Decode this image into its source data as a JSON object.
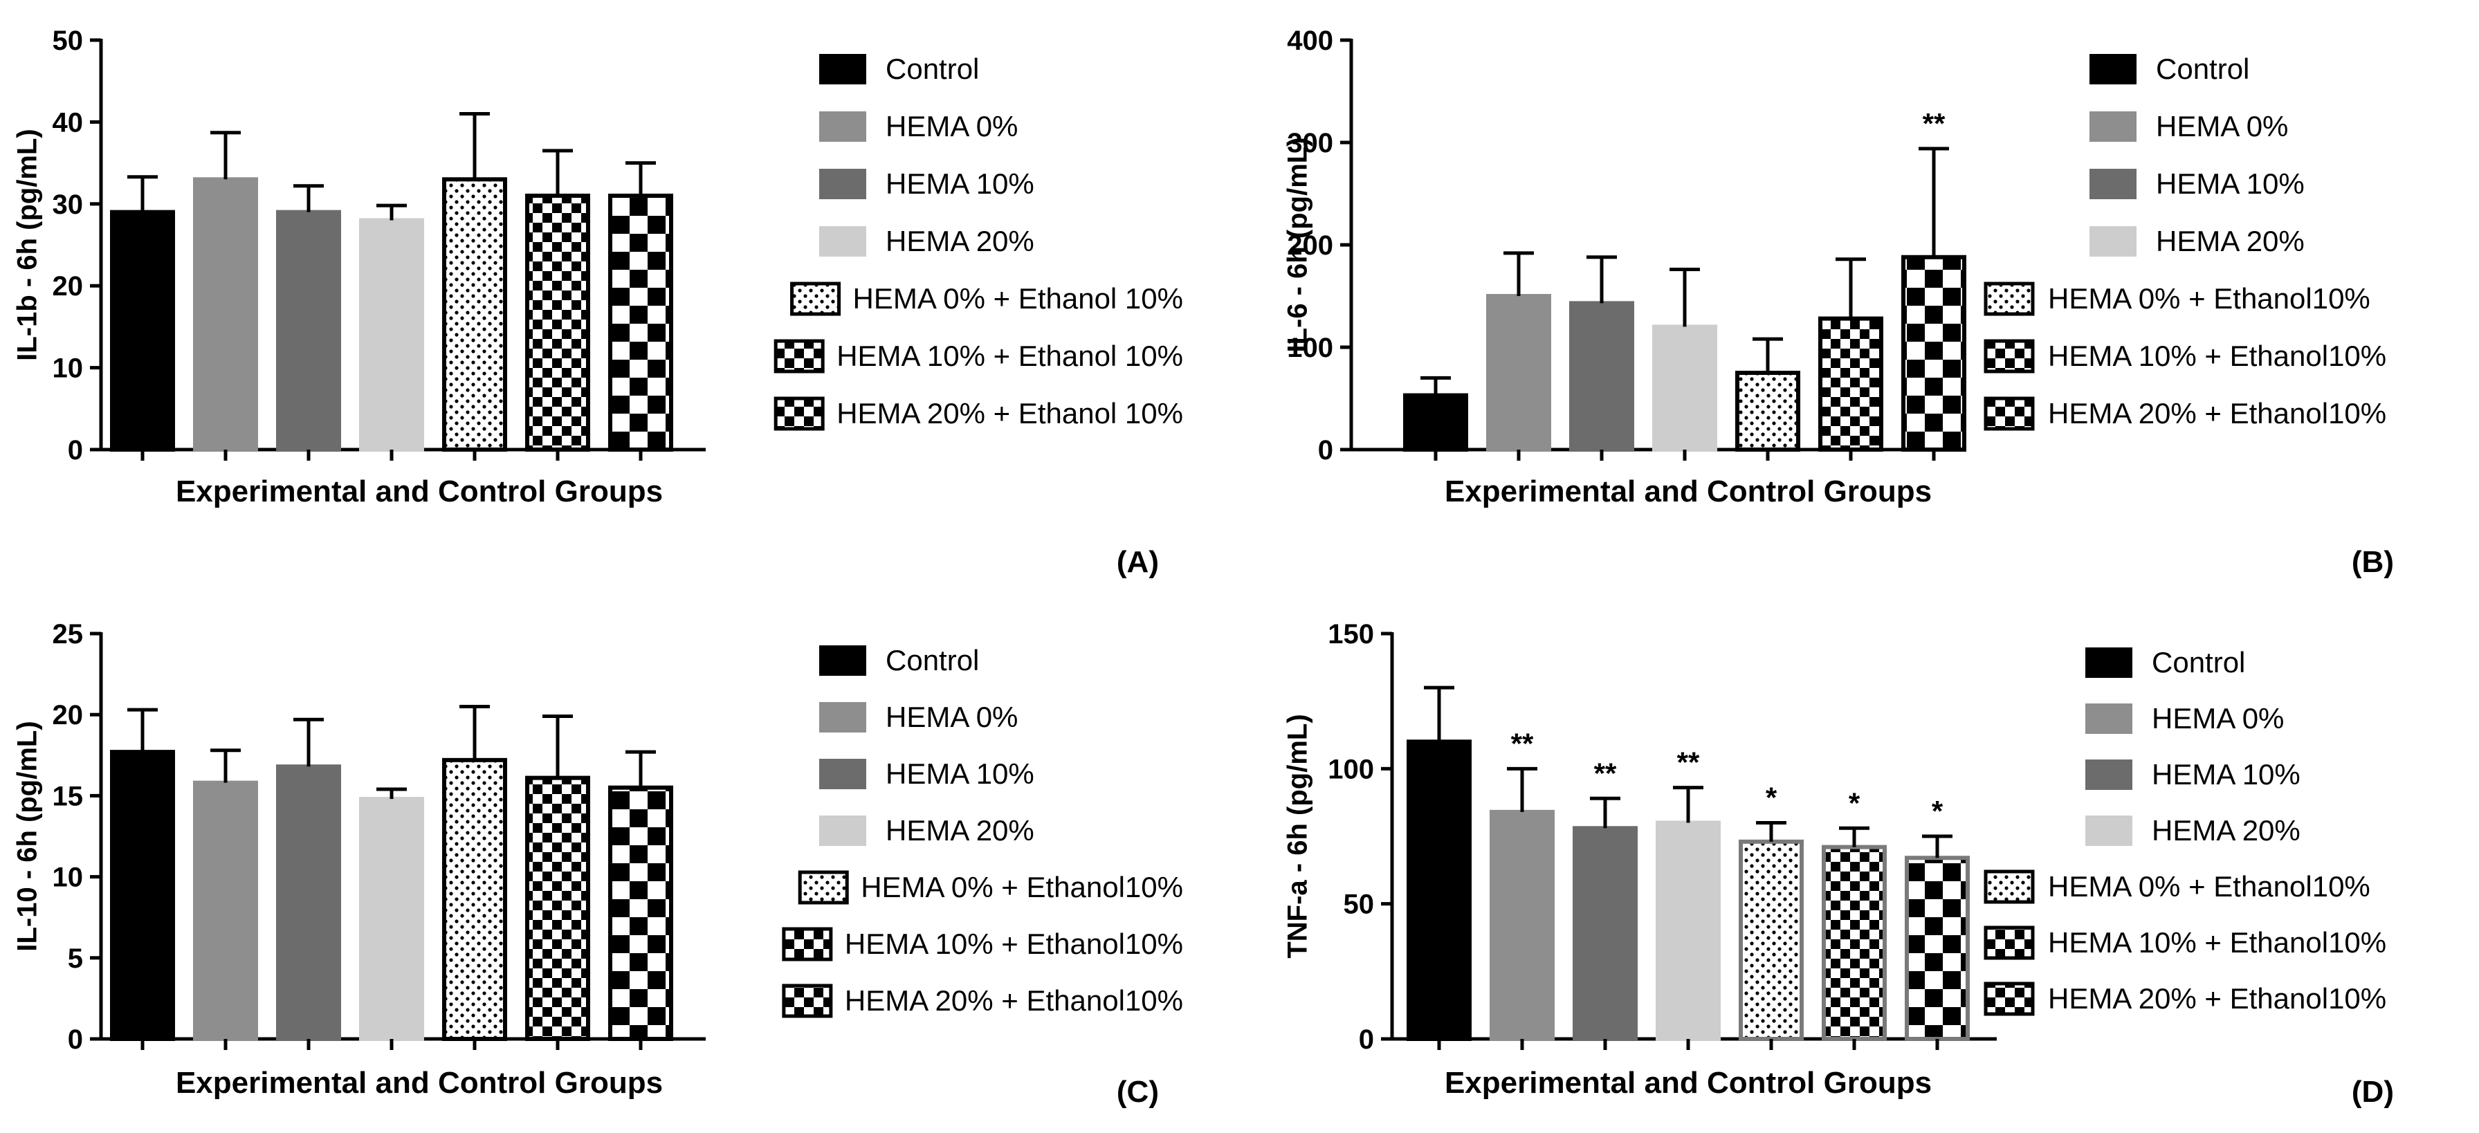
{
  "colors": {
    "control": "#000000",
    "hema0": "#8e8e8e",
    "hema10": "#6c6c6c",
    "hema20": "#cdcdcd",
    "outline_d": "#7a7a7a"
  },
  "chart_data": [
    {
      "type": "bar",
      "panel_label": "(A)",
      "ylabel": "IL-1b - 6h (pg/mL)",
      "xlabel": "Experimental and Control Groups",
      "ylim": [
        0,
        50
      ],
      "yticks": [
        0,
        10,
        20,
        30,
        40,
        50
      ],
      "categories": [
        "Control",
        "HEMA 0%",
        "HEMA 10%",
        "HEMA 20%",
        "HEMA 0% + Ethanol 10%",
        "HEMA 10% + Ethanol 10%",
        "HEMA 20% + Ethanol 10%"
      ],
      "values": [
        29,
        33,
        29,
        28,
        33,
        31,
        31
      ],
      "errors": [
        4.3,
        5.7,
        3.2,
        1.8,
        8,
        5.5,
        4
      ],
      "significance": [
        "",
        "",
        "",
        "",
        "",
        "",
        ""
      ],
      "legend": [
        "Control",
        "HEMA 0%",
        "HEMA 10%",
        "HEMA 20%",
        "HEMA 0% + Ethanol 10%",
        "HEMA 10% + Ethanol 10%",
        "HEMA 20% + Ethanol 10%"
      ],
      "legend_position": "right"
    },
    {
      "type": "bar",
      "panel_label": "(B)",
      "ylabel": "IL-6 - 6h (pg/mL)",
      "xlabel": "Experimental and Control Groups",
      "ylim": [
        0,
        400
      ],
      "yticks": [
        0,
        100,
        200,
        300,
        400
      ],
      "categories": [
        "Control",
        "HEMA 0%",
        "HEMA 10%",
        "HEMA 20%",
        "HEMA 0% + Ethanol10%",
        "HEMA 10% + Ethanol10%",
        "HEMA 20% + Ethanol10%"
      ],
      "values": [
        53,
        150,
        143,
        120,
        75,
        128,
        188
      ],
      "errors": [
        17,
        42,
        45,
        56,
        33,
        58,
        106
      ],
      "significance": [
        "",
        "",
        "",
        "",
        "",
        "",
        "**"
      ],
      "legend": [
        "Control",
        "HEMA 0%",
        "HEMA 10%",
        "HEMA 20%",
        "HEMA 0% + Ethanol10%",
        "HEMA 10% + Ethanol10%",
        "HEMA 20% + Ethanol10%"
      ],
      "legend_position": "right"
    },
    {
      "type": "bar",
      "panel_label": "(C)",
      "ylabel": "IL-10 - 6h (pg/mL)",
      "xlabel": "Experimental and Control Groups",
      "ylim": [
        0,
        25
      ],
      "yticks": [
        0,
        5,
        10,
        15,
        20,
        25
      ],
      "categories": [
        "Control",
        "HEMA 0%",
        "HEMA 10%",
        "HEMA 20%",
        "HEMA 0% + Ethanol10%",
        "HEMA 10% + Ethanol10%",
        "HEMA 20% + Ethanol10%"
      ],
      "values": [
        17.7,
        15.8,
        16.8,
        14.8,
        17.2,
        16.1,
        15.5
      ],
      "errors": [
        2.6,
        2,
        2.9,
        0.6,
        3.3,
        3.8,
        2.2
      ],
      "significance": [
        "",
        "",
        "",
        "",
        "",
        "",
        ""
      ],
      "legend": [
        "Control",
        "HEMA 0%",
        "HEMA 10%",
        "HEMA 20%",
        "HEMA 0% + Ethanol10%",
        "HEMA 10% + Ethanol10%",
        "HEMA 20% + Ethanol10%"
      ],
      "legend_position": "right"
    },
    {
      "type": "bar",
      "panel_label": "(D)",
      "ylabel": "TNF-a - 6h (pg/mL)",
      "xlabel": "Experimental and Control Groups",
      "ylim": [
        0,
        150
      ],
      "yticks": [
        0,
        50,
        100,
        150
      ],
      "categories": [
        "Control",
        "HEMA 0%",
        "HEMA 10%",
        "HEMA 20%",
        "HEMA 0% + Ethanol10%",
        "HEMA 10% + Ethanol10%",
        "HEMA 20% + Ethanol10%"
      ],
      "values": [
        110,
        84,
        78,
        80,
        73,
        71,
        67
      ],
      "errors": [
        20,
        16,
        11,
        13,
        7,
        7,
        8
      ],
      "significance": [
        "",
        "**",
        "**",
        "**",
        "*",
        "*",
        "*"
      ],
      "legend": [
        "Control",
        "HEMA 0%",
        "HEMA 10%",
        "HEMA 20%",
        "HEMA 0% + Ethanol10%",
        "HEMA 10% + Ethanol10%",
        "HEMA 20% + Ethanol10%"
      ],
      "legend_position": "right"
    }
  ]
}
